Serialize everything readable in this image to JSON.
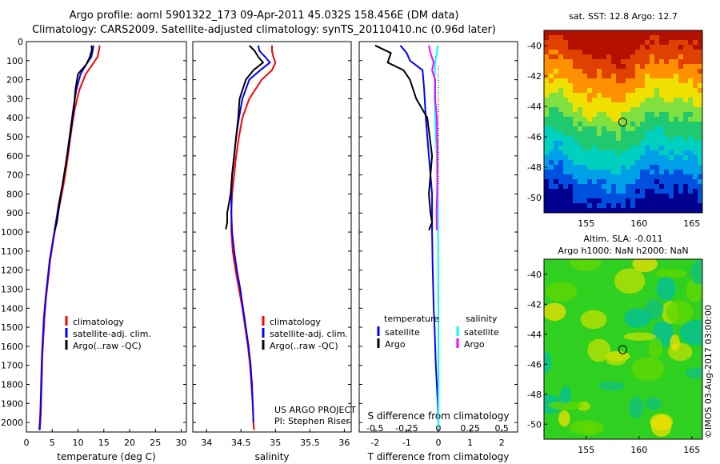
{
  "header": {
    "line1": "Argo profile: aoml 5901322_173 09-Apr-2011 45.032S 158.456E (DM data)",
    "line2": "Climatology: CARS2009. Satellite-adjusted climatology: synTS_20110410.nc (0.96d later)"
  },
  "watermark": "©IMOS 03-Aug-2017 03:00:00",
  "colors": {
    "climatology": "#ff0000",
    "satellite": "#0000ff",
    "argo": "#000000",
    "salinity_satellite": "#00ffff",
    "salinity_argo": "#ff00ff"
  },
  "chart_data": [
    {
      "type": "line",
      "xlabel": "temperature (deg C)",
      "xlim": [
        0,
        31
      ],
      "xticks": [
        0,
        5,
        10,
        15,
        20,
        25,
        30
      ],
      "ylim": [
        2050,
        0
      ],
      "yticks": [
        0,
        100,
        200,
        300,
        400,
        500,
        600,
        700,
        800,
        900,
        1000,
        1100,
        1200,
        1300,
        1400,
        1500,
        1600,
        1700,
        1800,
        1900,
        2000
      ],
      "legend": {
        "position": "lower-center",
        "entries": [
          "climatology",
          "satellite-adj. clim.",
          "Argo(..raw -QC)"
        ]
      },
      "series": [
        {
          "name": "climatology",
          "color": "#ff0000",
          "x": [
            14.2,
            14.1,
            13.8,
            12.8,
            11.5,
            10.3,
            9.4,
            8.8,
            8.3,
            7.8,
            7.2,
            6.5,
            5.8,
            5.2,
            4.6,
            4.2,
            3.8,
            3.5,
            3.3,
            3.1,
            3.0,
            2.9,
            2.8,
            2.7,
            2.6
          ],
          "y": [
            20,
            40,
            80,
            120,
            170,
            250,
            350,
            450,
            550,
            650,
            750,
            850,
            950,
            1050,
            1150,
            1250,
            1350,
            1450,
            1550,
            1650,
            1750,
            1850,
            1950,
            2000,
            2040
          ]
        },
        {
          "name": "satellite-adj. clim.",
          "color": "#0000ff",
          "x": [
            13.0,
            12.9,
            12.6,
            11.6,
            10.5,
            9.7,
            9.1,
            8.6,
            8.1,
            7.6,
            7.0,
            6.3,
            5.7,
            5.1,
            4.5,
            4.1,
            3.7,
            3.4,
            3.2,
            3.0,
            2.9,
            2.8,
            2.7,
            2.6,
            2.5
          ],
          "y": [
            20,
            40,
            80,
            120,
            170,
            250,
            350,
            450,
            550,
            650,
            750,
            850,
            950,
            1050,
            1150,
            1250,
            1350,
            1450,
            1550,
            1650,
            1750,
            1850,
            1950,
            2000,
            2040
          ]
        },
        {
          "name": "Argo(..raw -QC)",
          "color": "#000000",
          "x": [
            12.6,
            12.7,
            12.3,
            11.6,
            10.0,
            9.5,
            9.2,
            8.7,
            8.2,
            7.6,
            7.0,
            6.4,
            5.9,
            5.5
          ],
          "y": [
            20,
            40,
            80,
            120,
            170,
            250,
            350,
            450,
            550,
            650,
            750,
            850,
            950,
            990
          ]
        }
      ]
    },
    {
      "type": "line",
      "xlabel": "salinity",
      "xlim": [
        33.8,
        36.1
      ],
      "xticks": [
        34,
        34.5,
        35,
        35.5,
        36
      ],
      "ylim": [
        2050,
        0
      ],
      "legend": {
        "position": "lower-right",
        "entries": [
          "climatology",
          "satellite-adj. clim.",
          "Argo(..raw -QC)"
        ]
      },
      "annotations": [
        "US ARGO PROJECT",
        "PI: Stephen Riser"
      ],
      "series": [
        {
          "name": "climatology",
          "color": "#ff0000",
          "x": [
            34.95,
            34.95,
            34.97,
            35.0,
            34.95,
            34.8,
            34.62,
            34.52,
            34.47,
            34.43,
            34.4,
            34.37,
            34.36,
            34.36,
            34.38,
            34.42,
            34.47,
            34.52,
            34.56,
            34.6,
            34.63,
            34.65,
            34.67,
            34.68,
            34.69
          ],
          "y": [
            20,
            50,
            80,
            110,
            150,
            200,
            300,
            400,
            500,
            600,
            700,
            800,
            900,
            1000,
            1100,
            1200,
            1300,
            1400,
            1500,
            1600,
            1700,
            1800,
            1900,
            2000,
            2040
          ]
        },
        {
          "name": "satellite-adj. clim.",
          "color": "#0000ff",
          "x": [
            34.75,
            34.77,
            34.85,
            34.92,
            34.78,
            34.62,
            34.52,
            34.47,
            34.43,
            34.4,
            34.37,
            34.36,
            34.36,
            34.37,
            34.4,
            34.44,
            34.49,
            34.53,
            34.57,
            34.61,
            34.64,
            34.66,
            34.67,
            34.68
          ],
          "y": [
            20,
            50,
            80,
            110,
            150,
            200,
            300,
            400,
            500,
            600,
            700,
            800,
            900,
            1000,
            1100,
            1200,
            1300,
            1400,
            1500,
            1600,
            1700,
            1800,
            1900,
            2000
          ]
        },
        {
          "name": "Argo(..raw -QC)",
          "color": "#000000",
          "x": [
            34.62,
            34.7,
            34.75,
            34.82,
            34.68,
            34.57,
            34.48,
            34.46,
            34.43,
            34.4,
            34.37,
            34.35,
            34.3,
            34.3,
            34.28
          ],
          "y": [
            20,
            50,
            80,
            110,
            150,
            200,
            300,
            400,
            500,
            600,
            700,
            800,
            900,
            950,
            985
          ]
        }
      ]
    },
    {
      "type": "line",
      "xlabel": "T difference from climatology",
      "xlabel_top": "S difference from climatology",
      "xlim": [
        -2.5,
        2.5
      ],
      "xticks": [
        -2,
        -1,
        0,
        1,
        2
      ],
      "xticks_top": [
        -0.5,
        -0.25,
        0,
        0.25,
        0.5
      ],
      "xticklabels_top": [
        "-0.5",
        "-0.25",
        "0",
        "0.25",
        "0.5"
      ],
      "ylim": [
        2050,
        0
      ],
      "legend": {
        "position": "lower-center",
        "groups": [
          "temperature",
          "salinity"
        ],
        "entries": [
          "satellite",
          "Argo",
          "satellite",
          "Argo"
        ]
      },
      "series": [
        {
          "name": "satellite",
          "group": "temperature",
          "color": "#0000ff",
          "x": [
            -1.2,
            -1.0,
            -0.9,
            -0.5,
            -0.45,
            -0.4,
            -0.3,
            -0.2,
            -0.2,
            -0.18,
            -0.15,
            -0.12,
            -0.1,
            -0.08,
            -0.05,
            -0.02,
            0.0,
            0.0
          ],
          "y": [
            20,
            60,
            100,
            150,
            250,
            400,
            600,
            800,
            1000,
            1200,
            1400,
            1500,
            1600,
            1700,
            1800,
            1900,
            2000,
            2030
          ]
        },
        {
          "name": "Argo",
          "group": "temperature",
          "color": "#000000",
          "x": [
            -2.0,
            -1.5,
            -1.6,
            -1.1,
            -0.9,
            -0.7,
            -0.35,
            -0.2,
            -0.3,
            -0.25,
            -0.2,
            -0.3
          ],
          "y": [
            20,
            60,
            110,
            150,
            200,
            300,
            400,
            600,
            800,
            900,
            950,
            990
          ]
        },
        {
          "name": "satellite",
          "group": "salinity",
          "color": "#00ffff",
          "x": [
            -0.02,
            -0.04,
            -0.1,
            -0.12,
            -0.12,
            -0.1,
            -0.08,
            -0.05,
            -0.02,
            -0.01,
            0.0,
            0.0
          ],
          "y": [
            20,
            60,
            100,
            200,
            300,
            400,
            500,
            600,
            800,
            1000,
            1500,
            2030
          ]
        },
        {
          "name": "Argo",
          "group": "salinity",
          "color": "#ff00ff",
          "x": [
            -0.3,
            -0.25,
            -0.15,
            -0.2,
            -0.1,
            -0.1,
            -0.05,
            -0.03,
            -0.04,
            -0.06,
            -0.05
          ],
          "y": [
            20,
            60,
            110,
            150,
            200,
            300,
            400,
            600,
            800,
            900,
            990
          ]
        }
      ]
    },
    {
      "type": "heatmap",
      "title": "sat. SST: 12.8 Argo: 12.7",
      "xlim": [
        151,
        166
      ],
      "xticks": [
        155,
        160,
        165
      ],
      "ylim": [
        -51,
        -39
      ],
      "yticks": [
        -40,
        -42,
        -44,
        -46,
        -48,
        -50
      ],
      "marker": {
        "lon": 158.456,
        "lat": -45.032
      },
      "gradient_stops": [
        "#b41000",
        "#e04000",
        "#ff9000",
        "#f0e000",
        "#80e040",
        "#20c870",
        "#00d0c0",
        "#00a0e8",
        "#0050e0",
        "#000090"
      ]
    },
    {
      "type": "heatmap",
      "title": "Altim. SLA: -0.011",
      "subtitle": "Argo h1000: NaN h2000: NaN",
      "xlim": [
        151,
        166
      ],
      "xticks": [
        155,
        160,
        165
      ],
      "ylim": [
        -51,
        -39
      ],
      "yticks": [
        -40,
        -42,
        -44,
        -46,
        -48,
        -50
      ],
      "marker": {
        "lon": 158.456,
        "lat": -45.032
      },
      "base_color": "#30d020",
      "patch_colors": [
        "#c0e000",
        "#f0e000",
        "#10c080",
        "#00c0a0",
        "#60d800"
      ]
    }
  ]
}
